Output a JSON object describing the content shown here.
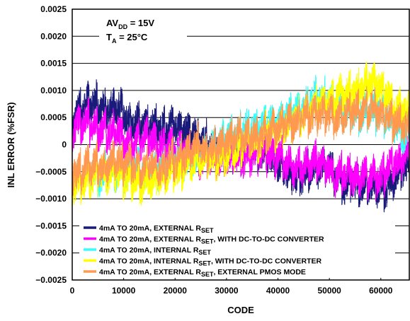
{
  "chart_data": {
    "type": "line",
    "title": "",
    "xlabel": "CODE",
    "ylabel": "INL ERROR (%FSR)",
    "xlim": [
      0,
      65535
    ],
    "ylim": [
      -0.0025,
      0.0025
    ],
    "x_ticks": [
      0,
      10000,
      20000,
      30000,
      40000,
      50000,
      60000
    ],
    "x_tick_labels": [
      "0",
      "10000",
      "20000",
      "30000",
      "40000",
      "50000",
      "60000"
    ],
    "y_ticks": [
      0.0025,
      0.002,
      0.0015,
      0.001,
      0.0005,
      0,
      -0.0005,
      -0.001,
      -0.0015,
      -0.002,
      -0.0025
    ],
    "y_tick_labels": [
      "0.0025",
      "0.0020",
      "0.0015",
      "0.0010",
      "0.0005",
      "0",
      "−0.0005",
      "−0.0010",
      "−0.0015",
      "−0.0020",
      "−0.0025"
    ],
    "grid": true,
    "legend_position": "bottom",
    "annotations": {
      "supply": {
        "main": "AV",
        "sub": "DD",
        "rest": " = 15V"
      },
      "temp": {
        "main": "T",
        "sub": "A",
        "rest": " = 25°C"
      }
    },
    "series": [
      {
        "name": "4mA TO 20mA, EXTERNAL RSET",
        "legend": {
          "pre": "4mA TO 20mA, EXTERNAL R",
          "sub": "SET",
          "post": ""
        },
        "color": "#1a1a7a",
        "x": [
          0,
          3000,
          8000,
          13000,
          18000,
          23000,
          28000,
          33000,
          38000,
          43000,
          48000,
          53000,
          58000,
          62000,
          65535
        ],
        "y": [
          0.0004,
          0.0008,
          0.0006,
          0.0004,
          0.0003,
          0.0002,
          0.0,
          -0.0002,
          -0.0003,
          -0.0005,
          -0.0004,
          -0.0006,
          -0.0008,
          -0.0007,
          -0.0003
        ]
      },
      {
        "name": "4mA TO 20mA, EXTERNAL RSET, WITH DC-TO-DC CONVERTER",
        "legend": {
          "pre": "4mA TO 20mA, EXTERNAL R",
          "sub": "SET",
          "post": ", WITH DC-TO-DC CONVERTER"
        },
        "color": "#ff00ff",
        "x": [
          0,
          3000,
          8000,
          13000,
          18000,
          23000,
          28000,
          33000,
          38000,
          43000,
          48000,
          53000,
          58000,
          62000,
          65535
        ],
        "y": [
          0.0003,
          0.0004,
          0.0002,
          0.0001,
          0.0,
          -0.0001,
          -0.0002,
          -0.0003,
          -0.0002,
          -0.0004,
          -0.0003,
          -0.0005,
          -0.0006,
          -0.0004,
          -0.0002
        ]
      },
      {
        "name": "4mA TO 20mA, INTERNAL RSET",
        "legend": {
          "pre": "4mA TO 20mA, INTERNAL R",
          "sub": "SET",
          "post": ""
        },
        "color": "#33ffff",
        "x": [
          0,
          3000,
          8000,
          13000,
          18000,
          23000,
          28000,
          33000,
          38000,
          43000,
          48000,
          53000,
          58000,
          62000,
          65535
        ],
        "y": [
          -0.0006,
          -0.0005,
          -0.0004,
          -0.0005,
          -0.0004,
          -0.0002,
          0.0,
          0.0002,
          0.0004,
          0.0005,
          0.0008,
          0.0006,
          0.0007,
          0.0005,
          0.0003
        ]
      },
      {
        "name": "4mA TO 20mA, INTERNAL RSET, WITH DC-TO-DC CONVERTER",
        "legend": {
          "pre": "4mA TO 20mA, INTERNAL R",
          "sub": "SET",
          "post": ", WITH DC-TO-DC CONVERTER"
        },
        "color": "#ffff00",
        "x": [
          0,
          3000,
          8000,
          13000,
          18000,
          23000,
          28000,
          33000,
          38000,
          43000,
          48000,
          53000,
          58000,
          62000,
          65535
        ],
        "y": [
          -0.0007,
          -0.0006,
          -0.0005,
          -0.0007,
          -0.0006,
          -0.0003,
          -0.0002,
          0.0,
          0.0003,
          0.0004,
          0.0007,
          0.0009,
          0.0012,
          0.0009,
          0.0006
        ]
      },
      {
        "name": "4mA TO 20mA, EXTERNAL RSET, EXTERNAL PMOS MODE",
        "legend": {
          "pre": "4mA TO 20mA, EXTERNAL R",
          "sub": "SET",
          "post": ", EXTERNAL PMOS MODE"
        },
        "color": "#ff9950",
        "x": [
          0,
          3000,
          8000,
          13000,
          18000,
          23000,
          28000,
          33000,
          38000,
          43000,
          48000,
          53000,
          58000,
          62000,
          65535
        ],
        "y": [
          -0.0005,
          -0.0004,
          -0.0003,
          -0.0004,
          -0.0003,
          -0.0001,
          0.0,
          0.0002,
          0.0003,
          0.0004,
          0.0006,
          0.0005,
          0.0006,
          0.0004,
          0.0003
        ]
      }
    ]
  }
}
